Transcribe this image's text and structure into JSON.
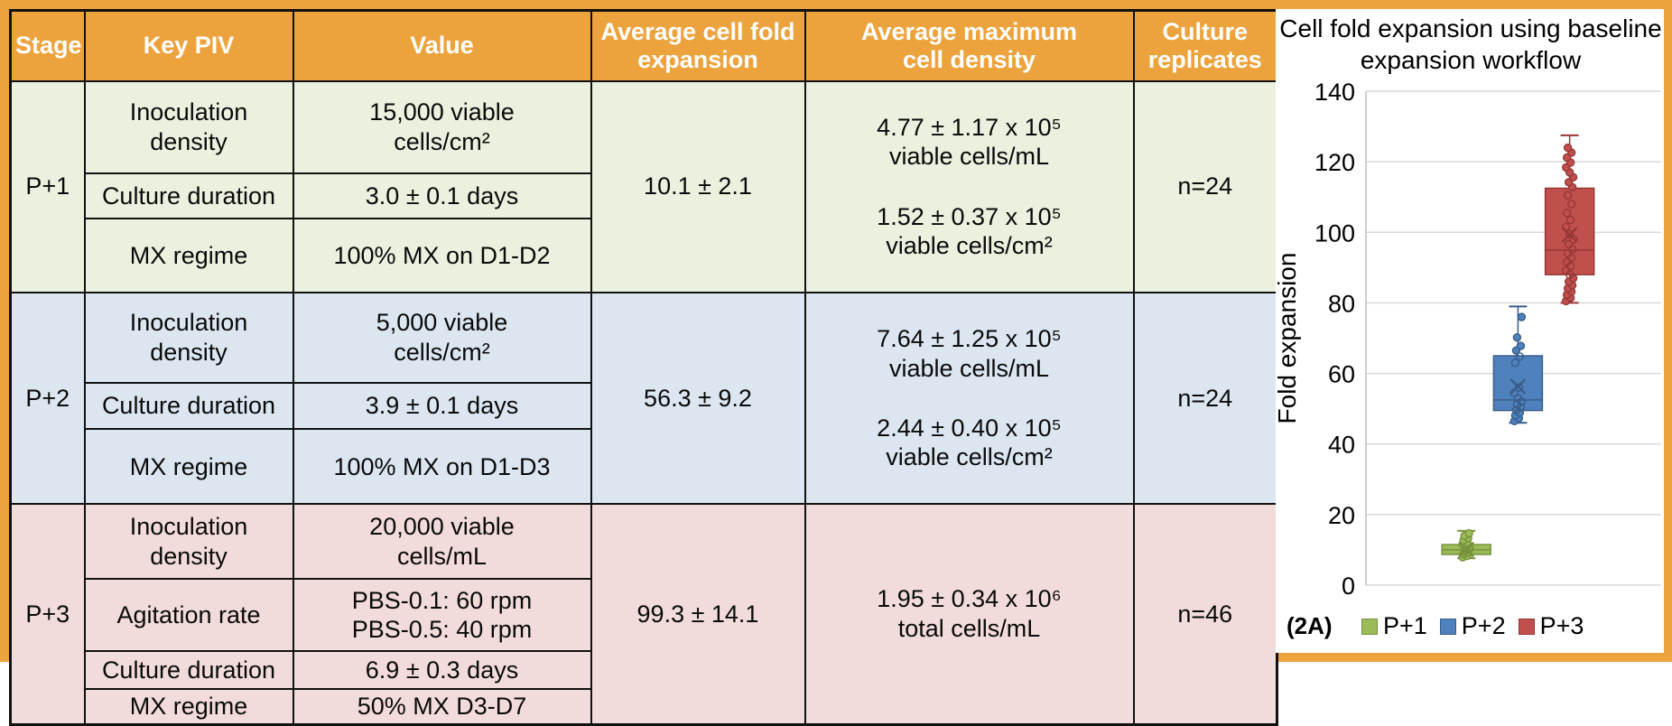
{
  "frame_color": "#EDA33D",
  "table": {
    "header_bg": "#EDA33D",
    "columns": [
      "Stage",
      "Key PIV",
      "Value",
      "Average cell fold\nexpansion",
      "Average maximum\ncell density",
      "Culture\nreplicates"
    ],
    "stages": [
      {
        "stage": "P+1",
        "bg": "#EBF1DE",
        "rows": [
          {
            "piv": "Inoculation density",
            "value": "15,000 viable\ncells/cm²"
          },
          {
            "piv": "Culture duration",
            "value": "3.0 ± 0.1 days"
          },
          {
            "piv": "MX regime",
            "value": "100% MX on D1-D2"
          }
        ],
        "fold_expansion": "10.1 ± 2.1",
        "max_density": [
          "4.77 ± 1.17 x 10⁵\nviable cells/mL",
          "1.52 ± 0.37 x 10⁵\nviable cells/cm²"
        ],
        "replicates": "n=24"
      },
      {
        "stage": "P+2",
        "bg": "#DCE6F1",
        "rows": [
          {
            "piv": "Inoculation density",
            "value": "5,000 viable\ncells/cm²"
          },
          {
            "piv": "Culture duration",
            "value": "3.9 ± 0.1 days"
          },
          {
            "piv": "MX regime",
            "value": "100% MX on D1-D3"
          }
        ],
        "fold_expansion": "56.3 ± 9.2",
        "max_density": [
          "7.64 ± 1.25 x 10⁵\nviable cells/mL",
          "2.44 ± 0.40 x 10⁵\nviable cells/cm²"
        ],
        "replicates": "n=24"
      },
      {
        "stage": "P+3",
        "bg": "#F2DCDB",
        "rows": [
          {
            "piv": "Inoculation density",
            "value": "20,000 viable\ncells/mL"
          },
          {
            "piv": "Agitation rate",
            "value": "PBS-0.1: 60 rpm\nPBS-0.5: 40 rpm"
          },
          {
            "piv": "Culture duration",
            "value": "6.9 ± 0.3 days"
          },
          {
            "piv": "MX regime",
            "value": "50% MX D3-D7"
          }
        ],
        "fold_expansion": "99.3 ± 14.1",
        "max_density": [
          "1.95 ± 0.34 x 10⁶\ntotal cells/mL"
        ],
        "replicates": "n=46"
      }
    ]
  },
  "chart_data": {
    "type": "boxplot",
    "title": "Cell fold expansion using baseline expansion workflow",
    "ylabel": "Fold expansion",
    "ylim": [
      0,
      140
    ],
    "yticks": [
      0,
      20,
      40,
      60,
      80,
      100,
      120,
      140
    ],
    "grid": true,
    "legend_position": "bottom",
    "caption": "(2A)",
    "gridline_color": "#D9D9D9",
    "axis_color": "#BFBFBF",
    "series": [
      {
        "name": "P+1",
        "color": "#9BBB59",
        "stroke": "#76923C",
        "whisker_low": 7.6,
        "q1": 8.7,
        "median": 10.0,
        "mean": 10.1,
        "q3": 11.5,
        "whisker_high": 15.4,
        "points": [
          7.9,
          8.3,
          8.8,
          9.2,
          9.6,
          10.0,
          10.3,
          10.7,
          11.1,
          11.6,
          12.1,
          12.7,
          13.3,
          14.0,
          14.7
        ]
      },
      {
        "name": "P+2",
        "color": "#4F81BD",
        "stroke": "#385D8A",
        "whisker_low": 46.0,
        "q1": 49.5,
        "median": 52.5,
        "mean": 56.3,
        "q3": 65.0,
        "whisker_high": 79.0,
        "points": [
          46.5,
          47.3,
          48.1,
          48.9,
          49.6,
          50.4,
          51.2,
          52.0,
          53.0,
          54.5,
          56.0,
          63.0,
          64.8,
          66.5,
          67.8,
          70.2,
          76.0
        ]
      },
      {
        "name": "P+3",
        "color": "#C0504D",
        "stroke": "#953735",
        "whisker_low": 80.0,
        "q1": 88.0,
        "median": 95.0,
        "mean": 99.3,
        "q3": 112.5,
        "whisker_high": 127.5,
        "points": [
          80.5,
          81.4,
          82.3,
          83.2,
          84.1,
          85.0,
          86.0,
          87.0,
          88.0,
          89.2,
          90.4,
          91.6,
          92.8,
          94.0,
          95.2,
          96.6,
          98.0,
          99.5,
          101.5,
          103.5,
          105.5,
          108.0,
          110.5,
          112.8,
          114.2,
          115.6,
          117.0,
          118.4,
          119.8,
          121.2,
          122.6,
          124.0
        ]
      }
    ]
  }
}
